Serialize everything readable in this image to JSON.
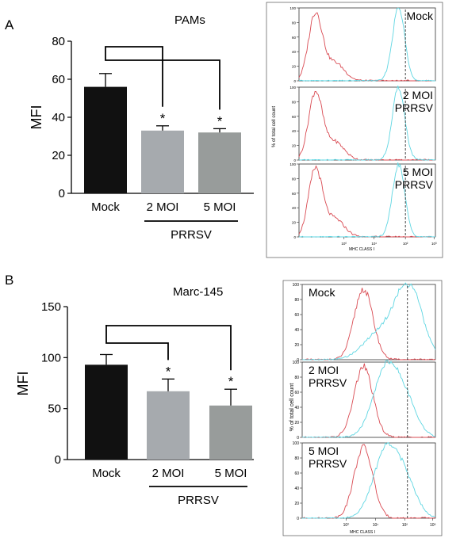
{
  "colors": {
    "mock_bar": "#111111",
    "moi2_bar": "#a6aaae",
    "moi5_bar": "#989c9b",
    "red_curve": "#d94a52",
    "cyan_curve": "#5fd6e2"
  },
  "panelA": {
    "label": "A",
    "title": "PAMs",
    "ylabel": "MFI",
    "xlabels": [
      "Mock",
      "2 MOI",
      "5 MOI"
    ],
    "group_label": "PRRSV",
    "star": "*",
    "yticks": [
      "0",
      "20",
      "40",
      "60",
      "80"
    ],
    "histo_ylabel": "% of total cell count",
    "histo_xlabel": "MHC CLASS I",
    "histo_yticks": [
      "0",
      "20",
      "40",
      "60",
      "80",
      "100"
    ],
    "histo_xticks": [
      "10⁰",
      "10¹",
      "10²",
      "10³"
    ],
    "histo_panels": [
      {
        "line1": "Mock",
        "line2": ""
      },
      {
        "line1": "2 MOI",
        "line2": "PRRSV"
      },
      {
        "line1": "5 MOI",
        "line2": "PRRSV"
      }
    ]
  },
  "panelB": {
    "label": "B",
    "title": "Marc-145",
    "ylabel": "MFI",
    "xlabels": [
      "Mock",
      "2 MOI",
      "5 MOI"
    ],
    "group_label": "PRRSV",
    "star": "*",
    "yticks": [
      "0",
      "50",
      "100",
      "150"
    ],
    "histo_ylabel": "% of total cell count",
    "histo_xlabel": "MHC CLASS I",
    "histo_yticks": [
      "0",
      "20",
      "40",
      "60",
      "80",
      "100"
    ],
    "histo_xticks": [
      "10⁰",
      "10¹",
      "10²",
      "10³"
    ],
    "histo_panels": [
      {
        "line1": "Mock",
        "line2": ""
      },
      {
        "line1": "2 MOI",
        "line2": "PRRSV"
      },
      {
        "line1": "5 MOI",
        "line2": "PRRSV"
      }
    ]
  },
  "chart_data": [
    {
      "type": "bar",
      "title": "PAMs",
      "xlabel": "",
      "ylabel": "MFI",
      "categories": [
        "Mock",
        "2 MOI",
        "5 MOI"
      ],
      "values": [
        56,
        33,
        32
      ],
      "errors": [
        7,
        2.5,
        2
      ],
      "significant": [
        false,
        true,
        true
      ],
      "ylim": [
        0,
        80
      ],
      "grid": false
    },
    {
      "type": "bar",
      "title": "Marc-145",
      "xlabel": "",
      "ylabel": "MFI",
      "categories": [
        "Mock",
        "2 MOI",
        "5 MOI"
      ],
      "values": [
        93,
        67,
        53
      ],
      "errors": [
        10,
        12,
        16
      ],
      "significant": [
        false,
        true,
        true
      ],
      "ylim": [
        0,
        150
      ],
      "grid": false
    },
    {
      "type": "line",
      "title": "",
      "xlabel": "MHC CLASS I",
      "ylabel": "% of total cell count",
      "xscale": "log",
      "xlim": [
        0.1,
        1000
      ],
      "ylim": [
        0,
        100
      ],
      "facets": [
        "Mock",
        "2 MOI PRRSV",
        "5 MOI PRRSV"
      ],
      "red_peak_x": 0.35,
      "cyan_peak_x": 25,
      "reference_line_x": 40
    },
    {
      "type": "line",
      "title": "",
      "xlabel": "MHC CLASS I",
      "ylabel": "% of total cell count",
      "xscale": "log",
      "xlim": [
        0.1,
        1000
      ],
      "ylim": [
        0,
        100
      ],
      "facets": [
        "Mock",
        "2 MOI PRRSV",
        "5 MOI PRRSV"
      ],
      "red_peak_x": [
        4,
        4,
        4
      ],
      "cyan_peak_x": [
        80,
        20,
        20
      ],
      "reference_line_x": 80
    }
  ]
}
